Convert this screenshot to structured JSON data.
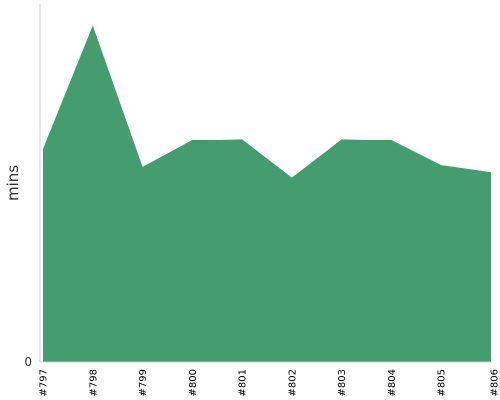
{
  "chart_data": {
    "type": "area",
    "title": "",
    "xlabel": "",
    "ylabel": "mins",
    "categories": [
      "#797",
      "#798",
      "#799",
      "#800",
      "#801",
      "#802",
      "#803",
      "#804",
      "#805",
      "#806"
    ],
    "x": [
      0,
      1,
      2,
      3,
      3.55,
      4,
      5,
      6,
      7,
      7.5,
      8,
      9
    ],
    "series": [
      {
        "values": [
          59.5,
          94,
          54.5,
          62,
          62,
          62.2,
          51.5,
          62.2,
          62,
          55,
          54,
          53
        ]
      }
    ],
    "x_positions": [
      0,
      1,
      2,
      3,
      3.5,
      4,
      5,
      6,
      6.5,
      7,
      8,
      8.5,
      9
    ],
    "ylim": [
      0,
      100
    ],
    "yticks": [
      "0"
    ],
    "grid": false,
    "legend": "none",
    "colors": {
      "fill": "#459c6e",
      "axis": "#cfcfcf"
    }
  }
}
